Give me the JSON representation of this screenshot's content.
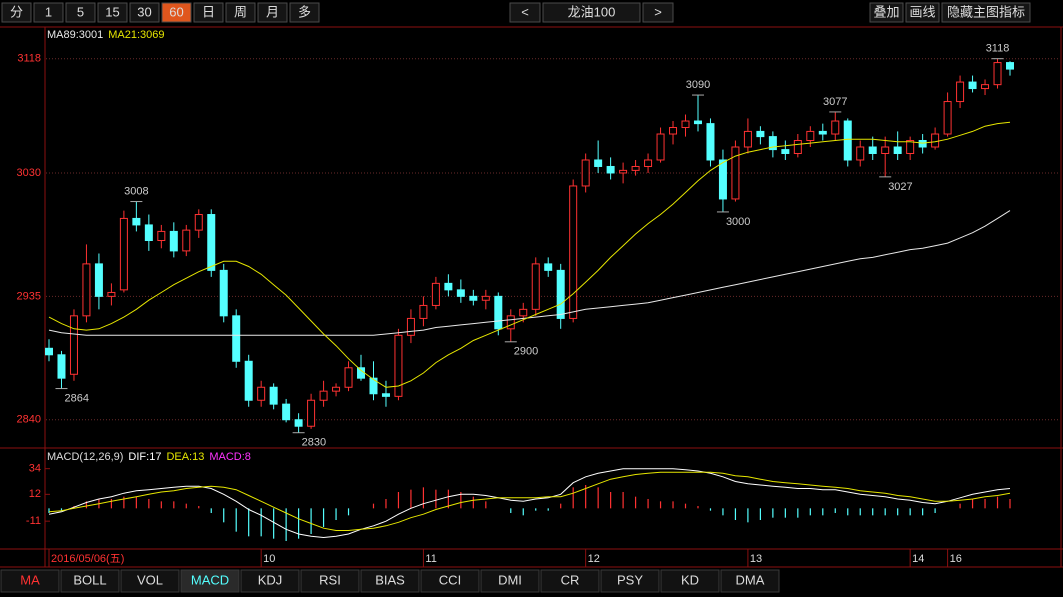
{
  "toolbar": {
    "periods": [
      "分",
      "1",
      "5",
      "15",
      "30",
      "60",
      "日",
      "周",
      "月",
      "多"
    ],
    "active_period": 5,
    "prev": "<",
    "next": ">",
    "tools": [
      "叠加",
      "画线",
      "隐藏主图指标"
    ]
  },
  "chart_data": [
    {
      "type": "candlestick",
      "title": "龙油100",
      "categories": [
        "2016/05/06(五)",
        null,
        null,
        null,
        null,
        null,
        null,
        null,
        null,
        null,
        null,
        null,
        null,
        null,
        null,
        null,
        null,
        "10",
        null,
        null,
        null,
        null,
        null,
        null,
        null,
        null,
        null,
        null,
        null,
        null,
        "11",
        null,
        null,
        null,
        null,
        null,
        null,
        null,
        null,
        null,
        null,
        null,
        null,
        "12",
        null,
        null,
        null,
        null,
        null,
        null,
        null,
        null,
        null,
        null,
        null,
        null,
        "13",
        null,
        null,
        null,
        null,
        null,
        null,
        null,
        null,
        null,
        null,
        null,
        null,
        "14",
        null,
        null,
        "16",
        null,
        null,
        null,
        null,
        null
      ],
      "open": [
        2895,
        2890,
        2875,
        2920,
        2960,
        2935,
        2940,
        2995,
        2990,
        2978,
        2985,
        2970,
        2986,
        2998,
        2955,
        2920,
        2885,
        2855,
        2865,
        2852,
        2840,
        2835,
        2855,
        2862,
        2865,
        2880,
        2872,
        2860,
        2858,
        2905,
        2918,
        2928,
        2945,
        2940,
        2935,
        2932,
        2935,
        2910,
        2920,
        2925,
        2960,
        2955,
        2918,
        3020,
        3040,
        3035,
        3030,
        3032,
        3035,
        3040,
        3060,
        3065,
        3070,
        3068,
        3040,
        3010,
        3050,
        3062,
        3058,
        3048,
        3045,
        3055,
        3062,
        3060,
        3070,
        3040,
        3050,
        3045,
        3050,
        3045,
        3055,
        3050,
        3060,
        3085,
        3100,
        3095,
        3098,
        3115
      ],
      "high": [
        2902,
        2893,
        2925,
        2975,
        2968,
        2945,
        3001,
        3008,
        2998,
        2990,
        2992,
        2990,
        3002,
        3002,
        2960,
        2925,
        2890,
        2870,
        2868,
        2856,
        2845,
        2860,
        2870,
        2868,
        2885,
        2890,
        2885,
        2870,
        2910,
        2925,
        2935,
        2950,
        2952,
        2948,
        2940,
        2940,
        2938,
        2925,
        2930,
        2965,
        2965,
        2960,
        3025,
        3045,
        3055,
        3042,
        3038,
        3040,
        3045,
        3065,
        3070,
        3075,
        3090,
        3072,
        3048,
        3055,
        3072,
        3066,
        3062,
        3055,
        3060,
        3066,
        3068,
        3077,
        3072,
        3055,
        3058,
        3058,
        3062,
        3058,
        3060,
        3065,
        3092,
        3105,
        3105,
        3102,
        3118,
        3116
      ],
      "low": [
        2885,
        2864,
        2870,
        2915,
        2925,
        2928,
        2938,
        2985,
        2970,
        2972,
        2965,
        2966,
        2980,
        2950,
        2915,
        2880,
        2850,
        2850,
        2848,
        2838,
        2830,
        2833,
        2850,
        2858,
        2862,
        2870,
        2855,
        2850,
        2855,
        2899,
        2912,
        2925,
        2935,
        2930,
        2928,
        2925,
        2905,
        2900,
        2915,
        2920,
        2950,
        2910,
        2915,
        3015,
        3030,
        3025,
        3022,
        3028,
        3030,
        3038,
        3052,
        3058,
        3062,
        3035,
        3000,
        3008,
        3045,
        3052,
        3042,
        3040,
        3042,
        3050,
        3055,
        3055,
        3035,
        3035,
        3040,
        3027,
        3040,
        3040,
        3045,
        3048,
        3058,
        3080,
        3092,
        3090,
        3095,
        3105
      ],
      "close": [
        2890,
        2872,
        2920,
        2960,
        2935,
        2938,
        2995,
        2990,
        2978,
        2985,
        2970,
        2986,
        2998,
        2955,
        2920,
        2885,
        2855,
        2865,
        2852,
        2840,
        2835,
        2855,
        2862,
        2865,
        2880,
        2872,
        2860,
        2858,
        2905,
        2918,
        2928,
        2945,
        2940,
        2935,
        2932,
        2935,
        2910,
        2920,
        2925,
        2960,
        2955,
        2918,
        3020,
        3040,
        3035,
        3030,
        3032,
        3035,
        3040,
        3060,
        3065,
        3070,
        3068,
        3040,
        3010,
        3050,
        3062,
        3058,
        3048,
        3045,
        3055,
        3062,
        3060,
        3070,
        3040,
        3050,
        3045,
        3050,
        3045,
        3055,
        3050,
        3060,
        3085,
        3100,
        3095,
        3098,
        3115,
        3110
      ],
      "up_color": "#ff3232",
      "down_color": "#54ffff",
      "series": [
        {
          "name": "MA89:3001",
          "color": "#e8e8e8",
          "values": [
            2909,
            2907,
            2906,
            2905,
            2905,
            2905,
            2905,
            2905,
            2905,
            2905,
            2905,
            2905,
            2905,
            2905,
            2905,
            2905,
            2905,
            2905,
            2905,
            2905,
            2905,
            2905,
            2905,
            2905,
            2905,
            2905,
            2905,
            2906,
            2907,
            2908,
            2909,
            2911,
            2912,
            2913,
            2914,
            2915,
            2916,
            2917,
            2918,
            2919,
            2920,
            2921,
            2923,
            2925,
            2926,
            2927,
            2928,
            2929,
            2930,
            2932,
            2934,
            2936,
            2938,
            2940,
            2942,
            2944,
            2946,
            2948,
            2950,
            2952,
            2954,
            2956,
            2958,
            2960,
            2962,
            2964,
            2965,
            2967,
            2969,
            2971,
            2972,
            2974,
            2976,
            2980,
            2984,
            2989,
            2995,
            3001
          ]
        },
        {
          "name": "MA21:3069",
          "color": "#e6e600",
          "values": [
            2919,
            2914,
            2910,
            2909,
            2910,
            2914,
            2919,
            2925,
            2932,
            2938,
            2944,
            2949,
            2954,
            2958,
            2962,
            2962,
            2958,
            2952,
            2944,
            2936,
            2926,
            2916,
            2906,
            2897,
            2887,
            2878,
            2871,
            2865,
            2866,
            2870,
            2876,
            2884,
            2890,
            2895,
            2901,
            2905,
            2909,
            2913,
            2917,
            2921,
            2925,
            2929,
            2937,
            2946,
            2955,
            2965,
            2974,
            2983,
            2991,
            2998,
            3006,
            3015,
            3024,
            3032,
            3038,
            3043,
            3046,
            3048,
            3050,
            3051,
            3052,
            3053,
            3054,
            3055,
            3056,
            3056,
            3056,
            3055,
            3054,
            3054,
            3053,
            3054,
            3056,
            3059,
            3062,
            3066,
            3068,
            3069
          ]
        }
      ],
      "annotations": [
        3008,
        2864,
        2830,
        2900,
        3090,
        3000,
        3077,
        3027,
        3118
      ],
      "ylim": [
        2819,
        3127
      ],
      "yticks": [
        2840,
        2935,
        3030,
        3118
      ],
      "grid": true
    },
    {
      "type": "macd",
      "title": "MACD(12,26,9)",
      "series": [
        {
          "name": "DIF:17",
          "color": "#ffffff",
          "values": [
            -5,
            -3,
            1,
            5,
            8,
            10,
            13,
            15,
            16,
            17,
            18,
            19,
            19,
            17,
            12,
            6,
            -1,
            -6,
            -12,
            -18,
            -22,
            -24,
            -25,
            -24,
            -22,
            -18,
            -15,
            -11,
            -5,
            0,
            4,
            7,
            10,
            12,
            12,
            11,
            9,
            7,
            6,
            8,
            9,
            12,
            22,
            27,
            30,
            32,
            34,
            34,
            34,
            34,
            34,
            33,
            32,
            30,
            27,
            23,
            21,
            20,
            19,
            18,
            17,
            17,
            16,
            16,
            14,
            12,
            11,
            10,
            8,
            7,
            5,
            4,
            6,
            9,
            12,
            14,
            16,
            17
          ]
        },
        {
          "name": "DEA:13",
          "color": "#e6e600",
          "values": [
            -3,
            -2,
            0,
            2,
            4,
            6,
            8,
            10,
            12,
            14,
            15,
            17,
            18,
            19,
            18,
            16,
            11,
            6,
            1,
            -4,
            -9,
            -13,
            -17,
            -19,
            -19,
            -18,
            -17,
            -15,
            -12,
            -8,
            -5,
            -1,
            2,
            5,
            7,
            8,
            9,
            9,
            9,
            9,
            10,
            10,
            13,
            17,
            21,
            25,
            27,
            29,
            30,
            31,
            31,
            31,
            31,
            31,
            30,
            28,
            27,
            25,
            23,
            22,
            21,
            20,
            19,
            18,
            17,
            15,
            14,
            13,
            11,
            10,
            8,
            6,
            6,
            7,
            8,
            10,
            11,
            13
          ]
        }
      ],
      "histogram": {
        "name": "MACD:8",
        "color": "#ff33ff",
        "up_color": "#ff3232",
        "down_color": "#54ffff",
        "values": [
          -4,
          -2,
          2,
          6,
          8,
          8,
          10,
          10,
          8,
          6,
          6,
          4,
          2,
          -4,
          -12,
          -20,
          -24,
          -24,
          -26,
          -28,
          -26,
          -22,
          -16,
          -10,
          -6,
          0,
          4,
          8,
          14,
          16,
          18,
          16,
          16,
          14,
          10,
          6,
          0,
          -4,
          -6,
          -2,
          -2,
          4,
          18,
          20,
          18,
          14,
          14,
          10,
          8,
          6,
          6,
          4,
          2,
          -2,
          -6,
          -10,
          -12,
          -10,
          -8,
          -8,
          -8,
          -6,
          -6,
          -4,
          -6,
          -6,
          -6,
          -6,
          -6,
          -6,
          -6,
          -4,
          0,
          4,
          8,
          8,
          10,
          8
        ]
      },
      "ylim": [
        -34,
        50
      ],
      "yticks": [
        34,
        12,
        -11
      ],
      "grid": false
    }
  ],
  "indicator_tabs": {
    "tabs": [
      "MA",
      "BOLL",
      "VOL",
      "MACD",
      "KDJ",
      "RSI",
      "BIAS",
      "CCI",
      "DMI",
      "CR",
      "PSY",
      "KD",
      "DMA"
    ],
    "active": 3
  }
}
